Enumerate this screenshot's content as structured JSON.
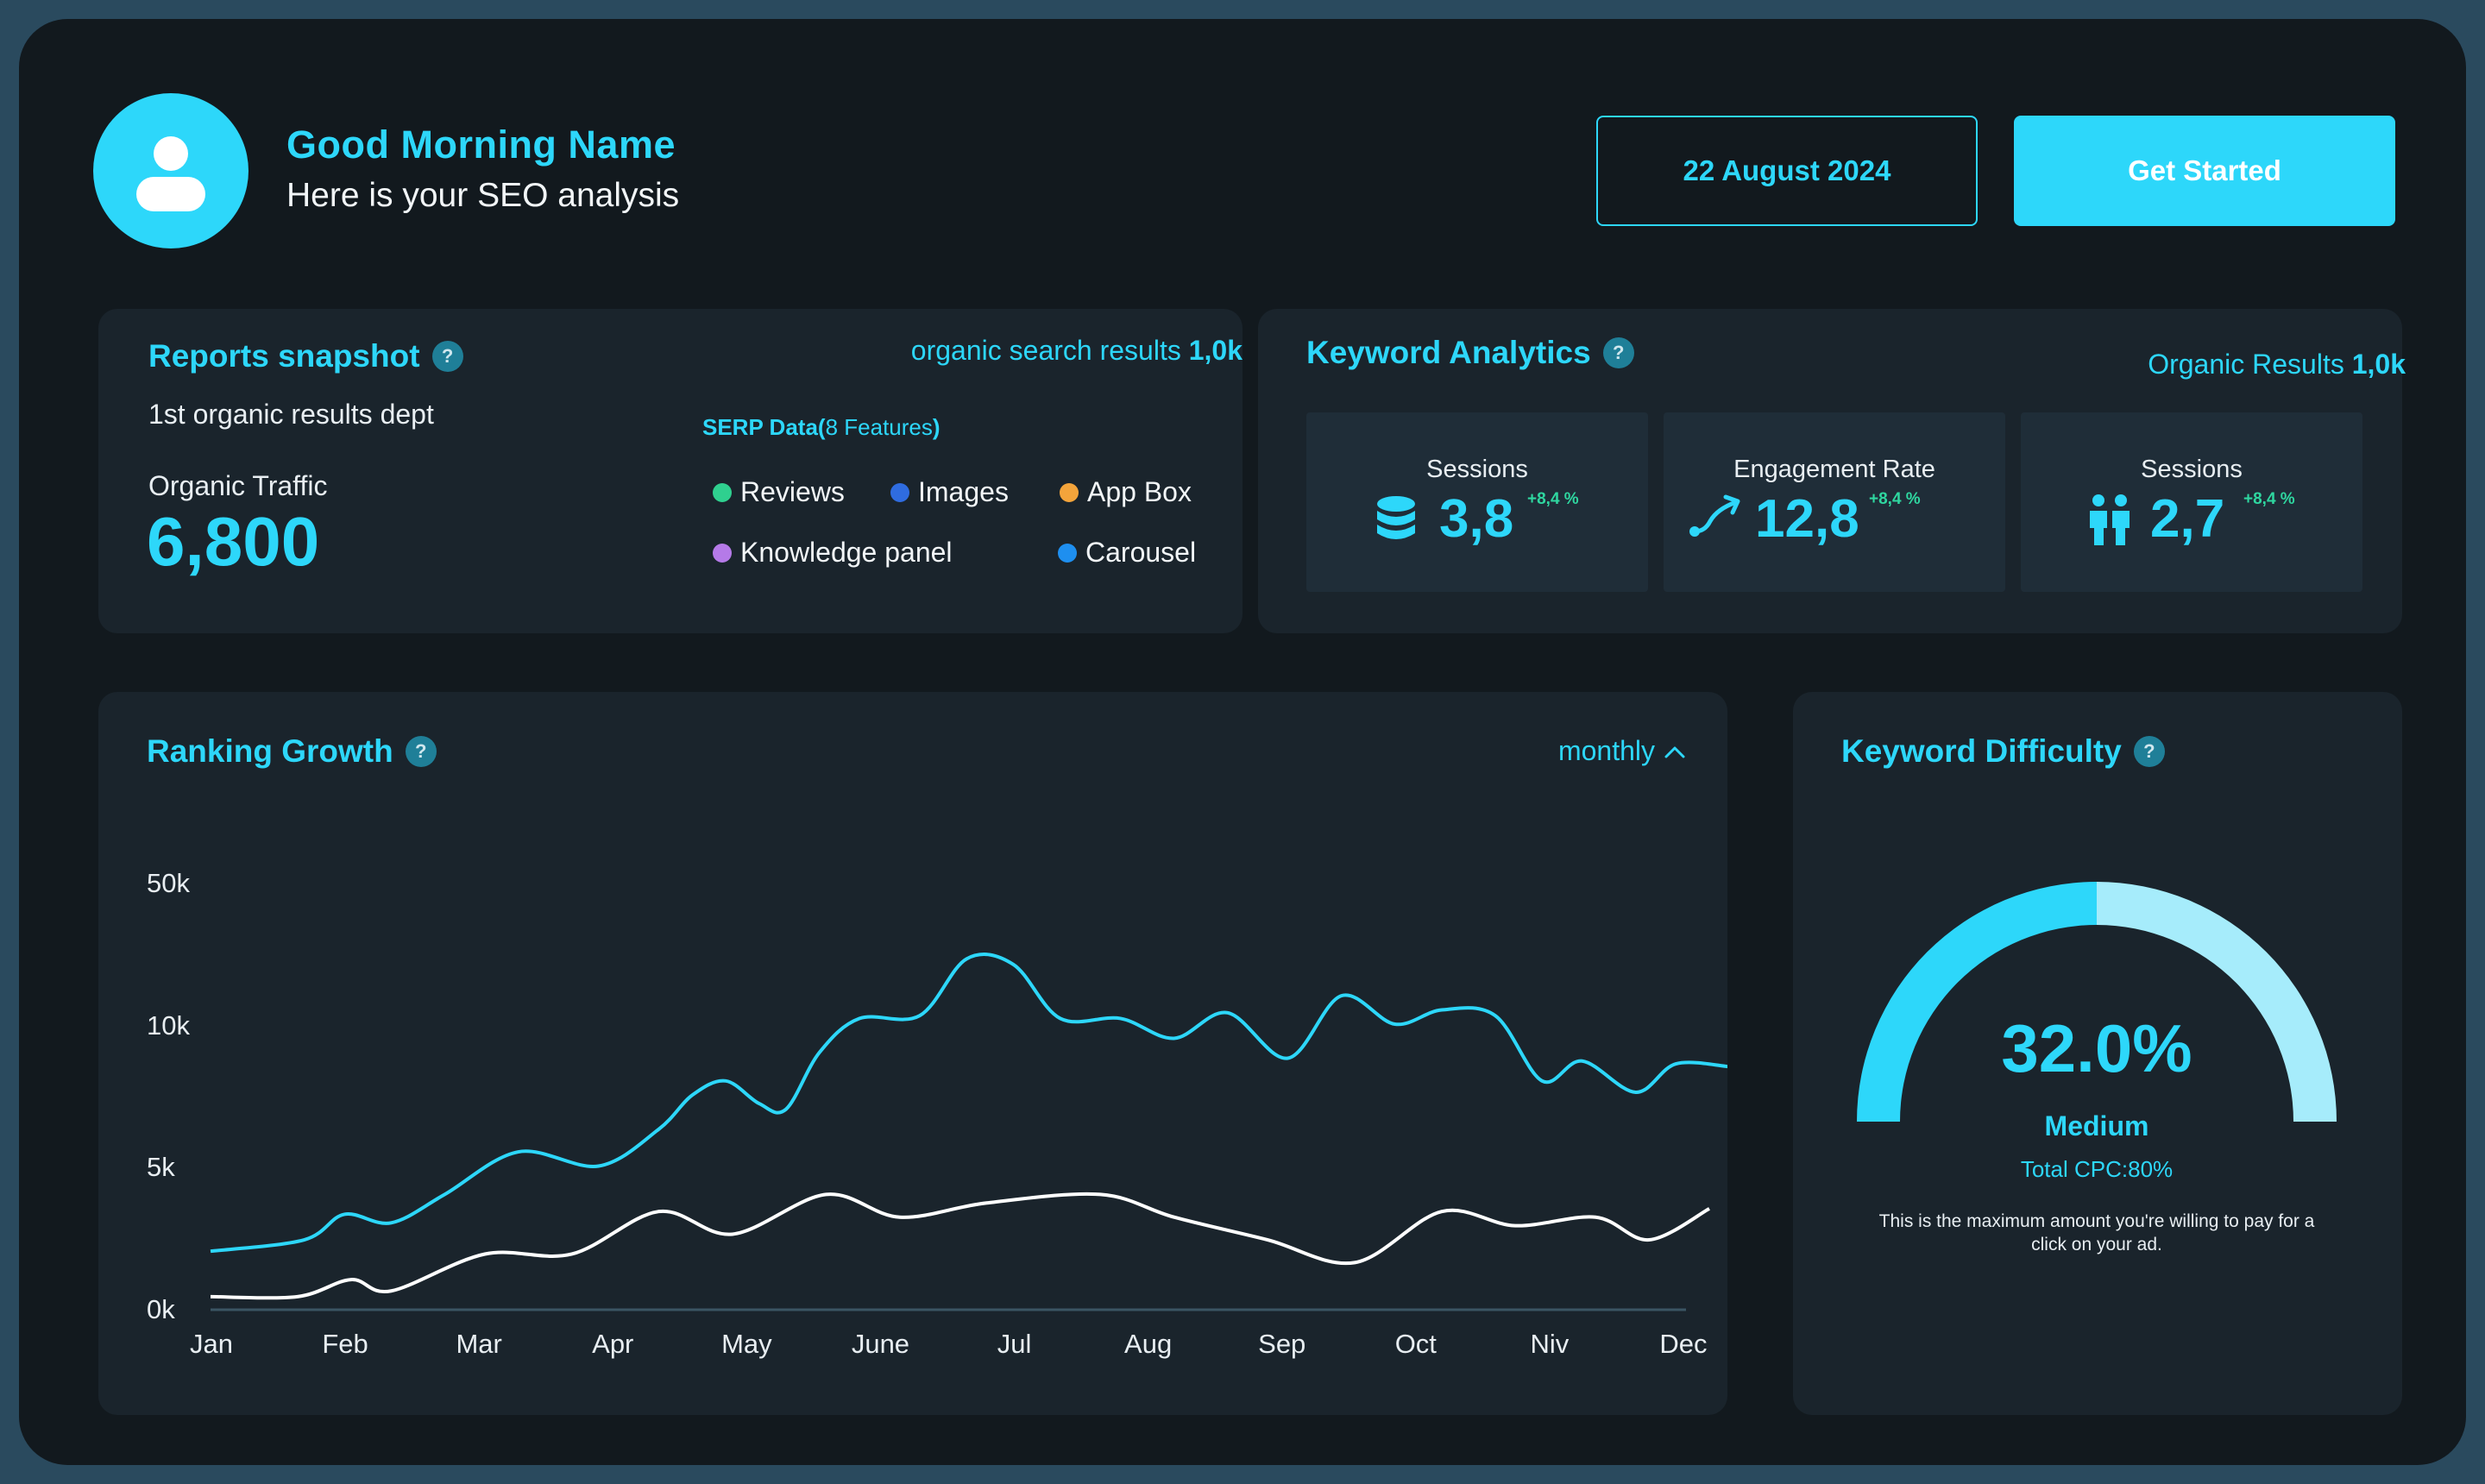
{
  "header": {
    "greeting": "Good Morning Name",
    "subtitle": "Here is your SEO analysis",
    "date_label": "22 August 2024",
    "cta_label": "Get Started"
  },
  "reports": {
    "title": "Reports snapshot",
    "help": "?",
    "organic_label": "organic search results",
    "organic_value": "1,0k",
    "dept_label": "1st organic results dept",
    "traffic_label": "Organic Traffic",
    "traffic_value": "6,800",
    "serp_title": "SERP Data(",
    "serp_features": "8 Features",
    "serp_close": ")",
    "legend": [
      {
        "label": "Reviews",
        "color": "#2fd08f"
      },
      {
        "label": "Images",
        "color": "#2f6ce0"
      },
      {
        "label": "App Box",
        "color": "#f3a43b"
      },
      {
        "label": "Knowledge panel",
        "color": "#b57ae8"
      },
      {
        "label": "Carousel",
        "color": "#1e8ff0"
      }
    ]
  },
  "keywords": {
    "title": "Keyword Analytics",
    "help": "?",
    "organic_label": "Organic Results",
    "organic_value": "1,0k",
    "metrics": [
      {
        "label": "Sessions",
        "value": "3,8",
        "change": "+8,4 %",
        "icon": "database-icon"
      },
      {
        "label": "Engagement Rate",
        "value": "12,8",
        "change": "+8,4 %",
        "icon": "trend-arrow-icon"
      },
      {
        "label": "Sessions",
        "value": "2,7",
        "change": "+8,4 %",
        "icon": "users-icon"
      }
    ]
  },
  "ranking": {
    "title": "Ranking Growth",
    "help": "?",
    "period": "monthly"
  },
  "difficulty": {
    "title": "Keyword Difficulty",
    "help": "?",
    "percent": "32.0%",
    "level": "Medium",
    "cpc": "Total CPC:80%",
    "description": "This is the maximum amount you're willing to pay for a click on your ad.",
    "gauge_value": 0.5,
    "colors": {
      "filled": "#2dd7fa",
      "remaining": "#a6ecfb"
    }
  },
  "chart_data": {
    "type": "line",
    "categories": [
      "Jan",
      "Feb",
      "Mar",
      "Apr",
      "May",
      "June",
      "Jul",
      "Aug",
      "Sep",
      "Oct",
      "Niv",
      "Dec"
    ],
    "y_ticks": [
      "0k",
      "5k",
      "10k",
      "50k"
    ],
    "series": [
      {
        "color": "#2dd7fa",
        "x": [
          0,
          0.7,
          1.0,
          1.35,
          1.75,
          2.3,
          2.9,
          3.35,
          3.6,
          3.85,
          4.1,
          4.3,
          4.55,
          4.85,
          5.3,
          5.65,
          6.0,
          6.35,
          6.8,
          7.2,
          7.6,
          8.05,
          8.45,
          8.85,
          9.2,
          9.6,
          9.95,
          10.25,
          10.65,
          10.95,
          11.35
        ],
        "y": [
          2.0,
          2.4,
          3.3,
          3.0,
          4.0,
          5.5,
          5.0,
          6.3,
          7.5,
          8.0,
          7.2,
          7.0,
          9.0,
          10.2,
          10.3,
          12.3,
          12.1,
          10.2,
          10.2,
          9.5,
          10.4,
          8.8,
          11.0,
          10.0,
          10.5,
          10.3,
          8.0,
          8.7,
          7.6,
          8.6,
          8.5
        ],
        "values_in": "k"
      },
      {
        "color": "#ffffff",
        "x": [
          0,
          0.65,
          1.05,
          1.35,
          2.05,
          2.7,
          3.35,
          3.9,
          4.6,
          5.15,
          5.8,
          6.65,
          7.2,
          7.9,
          8.55,
          9.2,
          9.75,
          10.35,
          10.75,
          11.2
        ],
        "y": [
          0.4,
          0.4,
          1.0,
          0.6,
          1.9,
          1.9,
          3.4,
          2.6,
          4.0,
          3.2,
          3.7,
          4.0,
          3.2,
          2.4,
          1.6,
          3.4,
          2.9,
          3.2,
          2.4,
          3.5
        ],
        "values_in": "k"
      }
    ]
  }
}
